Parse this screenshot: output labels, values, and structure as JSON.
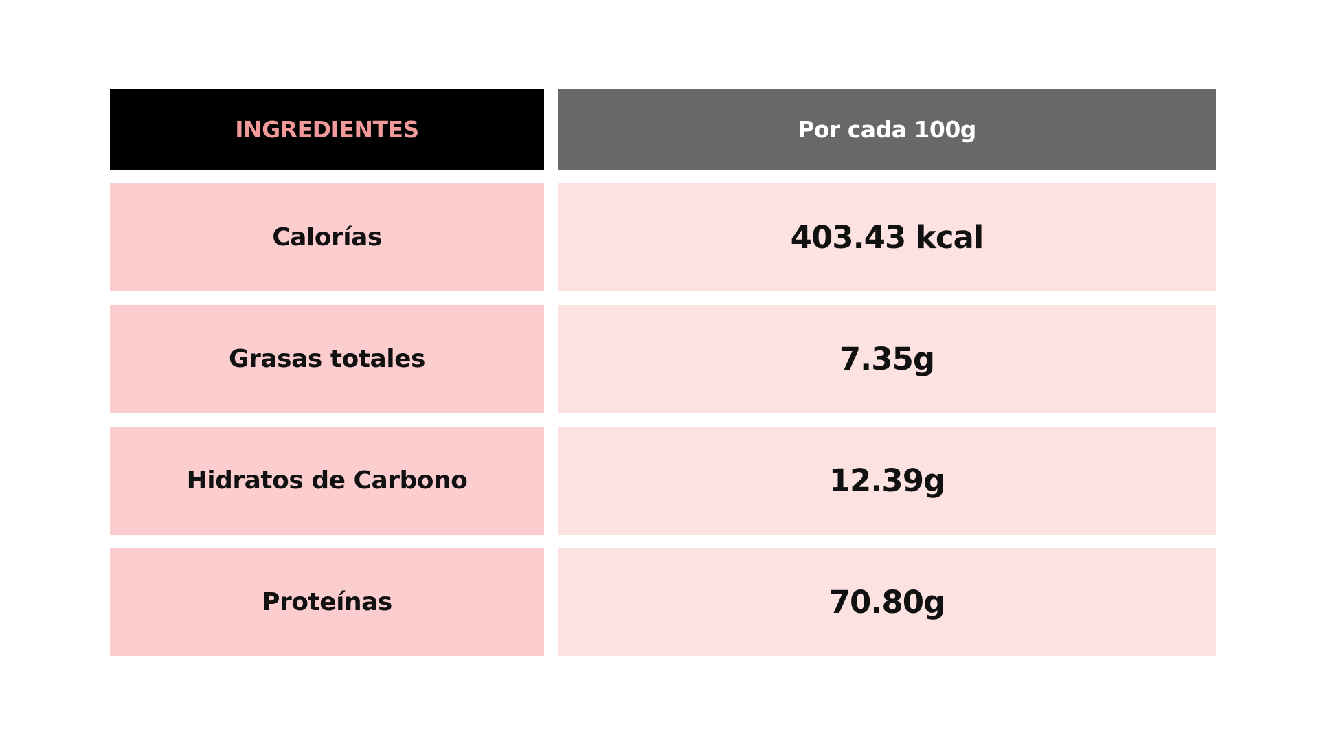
{
  "table": {
    "header": {
      "left": "INGREDIENTES",
      "right": "Por cada 100g"
    },
    "rows": [
      {
        "label": "Calorías",
        "value": "403.43 kcal"
      },
      {
        "label": "Grasas totales",
        "value": "7.35g"
      },
      {
        "label": "Hidratos de Carbono",
        "value": "12.39g"
      },
      {
        "label": "Proteínas",
        "value": "70.80g"
      }
    ]
  },
  "colors": {
    "header_left_bg": "#000000",
    "header_left_text": "#f29a9a",
    "header_right_bg": "#686868",
    "header_right_text": "#ffffff",
    "label_bg": "#fccdcf",
    "value_bg": "#fde2e2",
    "text": "#111111"
  }
}
